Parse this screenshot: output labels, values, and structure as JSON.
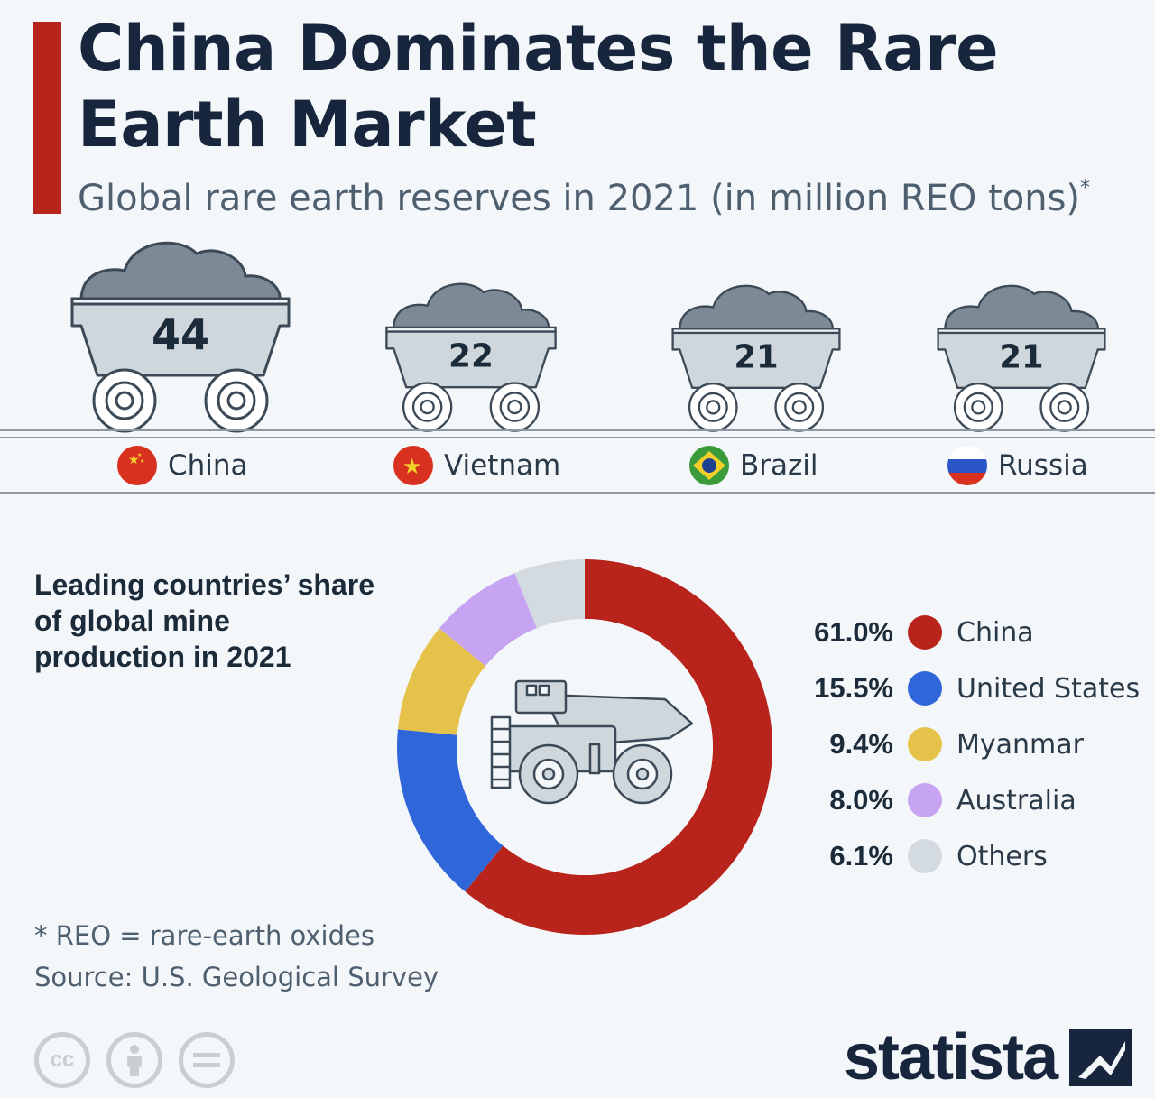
{
  "header": {
    "title": "China Dominates the Rare Earth Market",
    "subtitle": "Global rare earth reserves in 2021 (in million REO tons)",
    "subtitle_marker": "*"
  },
  "chart_data": [
    {
      "type": "bar",
      "categories": [
        "China",
        "Vietnam",
        "Brazil",
        "Russia"
      ],
      "values": [
        44,
        22,
        21,
        21
      ],
      "title": "Global rare earth reserves in 2021 (in million REO tons)",
      "unit": "million REO tons"
    },
    {
      "type": "pie",
      "title": "Leading countries’ share of global mine production in 2021",
      "categories": [
        "China",
        "United States",
        "Myanmar",
        "Australia",
        "Others"
      ],
      "values": [
        61.0,
        15.5,
        9.4,
        8.0,
        6.1
      ],
      "labels": [
        "61.0%",
        "15.5%",
        "9.4%",
        "8.0%",
        "6.1%"
      ],
      "colors": [
        "#b8241b",
        "#2f66d9",
        "#e5c24a",
        "#c6a4f2",
        "#d3dae0"
      ],
      "center_icon": "mining-truck-icon",
      "legend_position": "right"
    }
  ],
  "reserves": {
    "carts": [
      {
        "country": "China",
        "value": "44",
        "flag": "china-flag-icon"
      },
      {
        "country": "Vietnam",
        "value": "22",
        "flag": "vietnam-flag-icon"
      },
      {
        "country": "Brazil",
        "value": "21",
        "flag": "brazil-flag-icon"
      },
      {
        "country": "Russia",
        "value": "21",
        "flag": "russia-flag-icon"
      }
    ]
  },
  "production": {
    "title": "Leading countries’ share of global mine production in 2021"
  },
  "legend": [
    {
      "pct": "61.0%",
      "name": "China",
      "color": "#b8241b"
    },
    {
      "pct": "15.5%",
      "name": "United States",
      "color": "#2f66d9"
    },
    {
      "pct": "9.4%",
      "name": "Myanmar",
      "color": "#e5c24a"
    },
    {
      "pct": "8.0%",
      "name": "Australia",
      "color": "#c6a4f2"
    },
    {
      "pct": "6.1%",
      "name": "Others",
      "color": "#d3dae0"
    }
  ],
  "footer": {
    "footnote": "* REO = rare-earth oxides",
    "source": "Source: U.S. Geological Survey",
    "cc_icons": [
      "cc-icon",
      "attribution-icon",
      "no-derivatives-icon"
    ],
    "cc_label": "cc",
    "brand": "statista"
  },
  "colors": {
    "accent": "#b8241b",
    "title": "#17263c",
    "ore": "#7d8a96",
    "cart": "#cfd6dc"
  }
}
